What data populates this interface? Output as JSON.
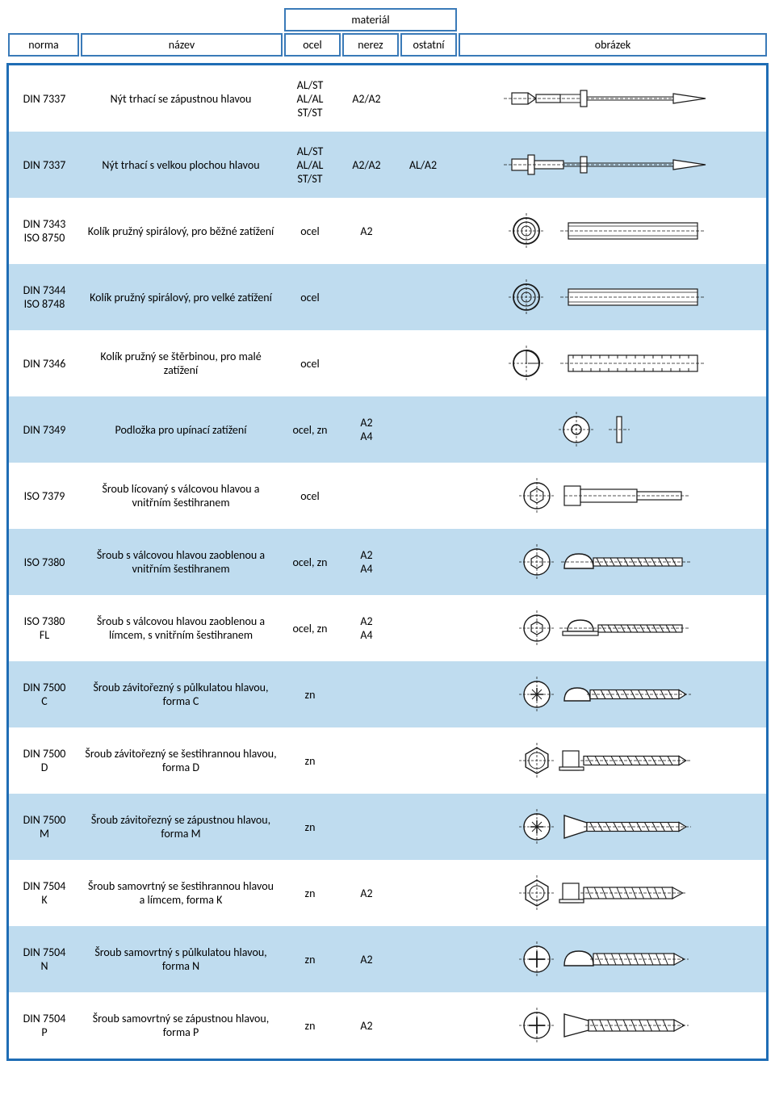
{
  "colors": {
    "header_border": "#3a7ab8",
    "main_border": "#1f6db5",
    "alt_row_bg": "#bfdcef",
    "ink": "#000000",
    "stroke": "#1a1a1a",
    "fill_light": "#f5f5f5"
  },
  "header": {
    "material": "materiál",
    "norma": "norma",
    "nazev": "název",
    "ocel": "ocel",
    "nerez": "nerez",
    "ostatni": "ostatní",
    "obrazek": "obrázek"
  },
  "rows": [
    {
      "norma": [
        "DIN 7337"
      ],
      "nazev": "Nýt trhací se zápustnou hlavou",
      "ocel": "AL/ST\nAL/AL\nST/ST",
      "nerez": "A2/A2",
      "ostatni": "",
      "alt": false,
      "image": "rivet-countersunk"
    },
    {
      "norma": [
        "DIN 7337"
      ],
      "nazev": "Nýt trhací s velkou plochou hlavou",
      "ocel": "AL/ST\nAL/AL\nST/ST",
      "nerez": "A2/A2",
      "ostatni": "AL/A2",
      "alt": true,
      "image": "rivet-flathead"
    },
    {
      "norma": [
        "DIN 7343",
        "ISO 8750"
      ],
      "nazev": "Kolík pružný spirálový, pro běžné zatížení",
      "ocel": "ocel",
      "nerez": "A2",
      "ostatni": "",
      "alt": false,
      "image": "spiral-pin"
    },
    {
      "norma": [
        "DIN 7344",
        "ISO 8748"
      ],
      "nazev": "Kolík pružný spirálový, pro velké zatížení",
      "ocel": "ocel",
      "nerez": "",
      "ostatni": "",
      "alt": true,
      "image": "spiral-pin"
    },
    {
      "norma": [
        "DIN 7346"
      ],
      "nazev": "Kolík pružný se štěrbinou, pro malé zatížení",
      "ocel": "ocel",
      "nerez": "",
      "ostatni": "",
      "alt": false,
      "image": "slotted-pin"
    },
    {
      "norma": [
        "DIN 7349"
      ],
      "nazev": "Podložka pro upínací zatížení",
      "ocel": "ocel, zn",
      "nerez": "A2\nA4",
      "ostatni": "",
      "alt": true,
      "image": "washer"
    },
    {
      "norma": [
        "ISO 7379"
      ],
      "nazev": "Šroub lícovaný s válcovou hlavou a vnitřním šestihranem",
      "ocel": "ocel",
      "nerez": "",
      "ostatni": "",
      "alt": false,
      "image": "shoulder-bolt"
    },
    {
      "norma": [
        "ISO 7380"
      ],
      "nazev": "Šroub s válcovou hlavou zaoblenou a vnitřním šestihranem",
      "ocel": "ocel, zn",
      "nerez": "A2\nA4",
      "ostatni": "",
      "alt": true,
      "image": "button-head"
    },
    {
      "norma": [
        "ISO 7380",
        "FL"
      ],
      "nazev": "Šroub s válcovou hlavou zaoblenou a límcem, s vnitřním šestihranem",
      "ocel": "ocel, zn",
      "nerez": "A2\nA4",
      "ostatni": "",
      "alt": false,
      "image": "button-head-flange"
    },
    {
      "norma": [
        "DIN 7500",
        "C"
      ],
      "nazev": "Šroub závitořezný s půlkulatou hlavou, forma C",
      "ocel": "zn",
      "nerez": "",
      "ostatni": "",
      "alt": true,
      "image": "thread-forming-pan"
    },
    {
      "norma": [
        "DIN 7500",
        "D"
      ],
      "nazev": "Šroub závitořezný se šestihrannou hlavou, forma D",
      "ocel": "zn",
      "nerez": "",
      "ostatni": "",
      "alt": false,
      "image": "thread-forming-hex"
    },
    {
      "norma": [
        "DIN 7500",
        "M"
      ],
      "nazev": "Šroub závitořezný se zápustnou hlavou, forma M",
      "ocel": "zn",
      "nerez": "",
      "ostatni": "",
      "alt": true,
      "image": "thread-forming-csk"
    },
    {
      "norma": [
        "DIN 7504",
        "K"
      ],
      "nazev": "Šroub samovrtný se šestihrannou hlavou a límcem, forma K",
      "ocel": "zn",
      "nerez": "A2",
      "ostatni": "",
      "alt": false,
      "image": "self-drill-hex"
    },
    {
      "norma": [
        "DIN 7504",
        "N"
      ],
      "nazev": "Šroub samovrtný s půlkulatou hlavou, forma N",
      "ocel": "zn",
      "nerez": "A2",
      "ostatni": "",
      "alt": true,
      "image": "self-drill-pan"
    },
    {
      "norma": [
        "DIN 7504",
        "P"
      ],
      "nazev": "Šroub samovrtný se zápustnou hlavou, forma P",
      "ocel": "zn",
      "nerez": "A2",
      "ostatni": "",
      "alt": false,
      "image": "self-drill-csk"
    }
  ]
}
